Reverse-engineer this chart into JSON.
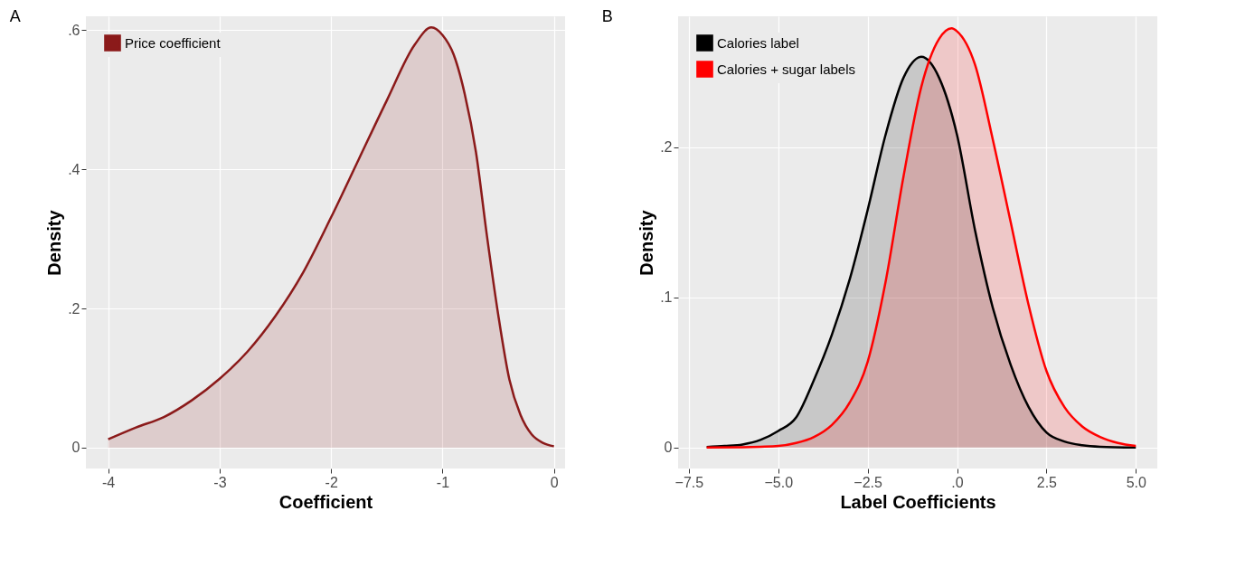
{
  "chart_data": [
    {
      "type": "area",
      "title": "A",
      "xlabel": "Coefficient",
      "ylabel": "Density",
      "legend": "top left",
      "grid": true,
      "xlim": [
        -4.2,
        0.1
      ],
      "xticks": [
        -4,
        -3,
        -2,
        -1,
        0
      ],
      "ylim": [
        -0.03,
        0.62
      ],
      "yticks": [
        0,
        {
          "value": 0.2,
          "label": ".2"
        },
        {
          "value": 0.4,
          "label": ".4"
        },
        {
          "value": 0.6,
          "label": ".6"
        }
      ],
      "series": [
        {
          "name": "Price coefficient",
          "color": "#8b1a1a",
          "x": [
            -4,
            -3.75,
            -3.5,
            -3.25,
            -3,
            -2.75,
            -2.5,
            -2.25,
            -2,
            -1.75,
            -1.5,
            -1.25,
            -1.1,
            -1,
            -0.9,
            -0.8,
            -0.7,
            -0.6,
            -0.5,
            -0.4,
            -0.3,
            -0.2,
            -0.1,
            0
          ],
          "values": [
            0.012,
            0.029,
            0.044,
            0.068,
            0.099,
            0.138,
            0.189,
            0.252,
            0.331,
            0.415,
            0.499,
            0.579,
            0.604,
            0.593,
            0.565,
            0.508,
            0.425,
            0.303,
            0.191,
            0.098,
            0.047,
            0.019,
            0.007,
            0.002
          ]
        }
      ]
    },
    {
      "type": "area",
      "title": "B",
      "xlabel": "Label Coefficients",
      "ylabel": "Density",
      "legend": "top left",
      "grid": true,
      "xlim": [
        -7.8,
        5.6
      ],
      "xticks": [
        {
          "value": -7.5,
          "label": "−7.5"
        },
        {
          "value": -5,
          "label": "−5.0"
        },
        {
          "value": -2.5,
          "label": "−2.5"
        },
        {
          "value": 0,
          "label": ".0"
        },
        {
          "value": 2.5,
          "label": "2.5"
        },
        {
          "value": 5,
          "label": "5.0"
        }
      ],
      "ylim": [
        -0.014,
        0.287
      ],
      "yticks": [
        0,
        {
          "value": 0.1,
          "label": ".1"
        },
        {
          "value": 0.2,
          "label": ".2"
        }
      ],
      "series": [
        {
          "name": "Calories label",
          "color": "#000000",
          "x": [
            -7,
            -6.5,
            -6,
            -5.5,
            -5,
            -4.5,
            -4,
            -3.5,
            -3,
            -2.5,
            -2,
            -1.5,
            -1,
            -0.5,
            0,
            0.5,
            1,
            1.5,
            2,
            2.5,
            3,
            3.5,
            4,
            5
          ],
          "values": [
            0.0003,
            0.001,
            0.002,
            0.005,
            0.011,
            0.02,
            0.045,
            0.075,
            0.112,
            0.158,
            0.208,
            0.246,
            0.26,
            0.246,
            0.208,
            0.145,
            0.093,
            0.055,
            0.027,
            0.01,
            0.004,
            0.0015,
            0.0005,
            0
          ]
        },
        {
          "name": "Calories + sugar labels",
          "color": "#ff0000",
          "x": [
            -7,
            -6,
            -5.5,
            -5,
            -4.5,
            -4,
            -3.5,
            -3,
            -2.5,
            -2,
            -1.5,
            -1,
            -0.5,
            -0.15,
            0,
            0.5,
            1,
            1.5,
            2,
            2.5,
            3,
            3.5,
            4,
            4.5,
            5
          ],
          "values": [
            0,
            0.0002,
            0.0005,
            0.001,
            0.003,
            0.007,
            0.015,
            0.03,
            0.057,
            0.11,
            0.18,
            0.24,
            0.272,
            0.279,
            0.277,
            0.255,
            0.205,
            0.15,
            0.095,
            0.051,
            0.027,
            0.014,
            0.007,
            0.003,
            0.001
          ]
        }
      ]
    }
  ]
}
